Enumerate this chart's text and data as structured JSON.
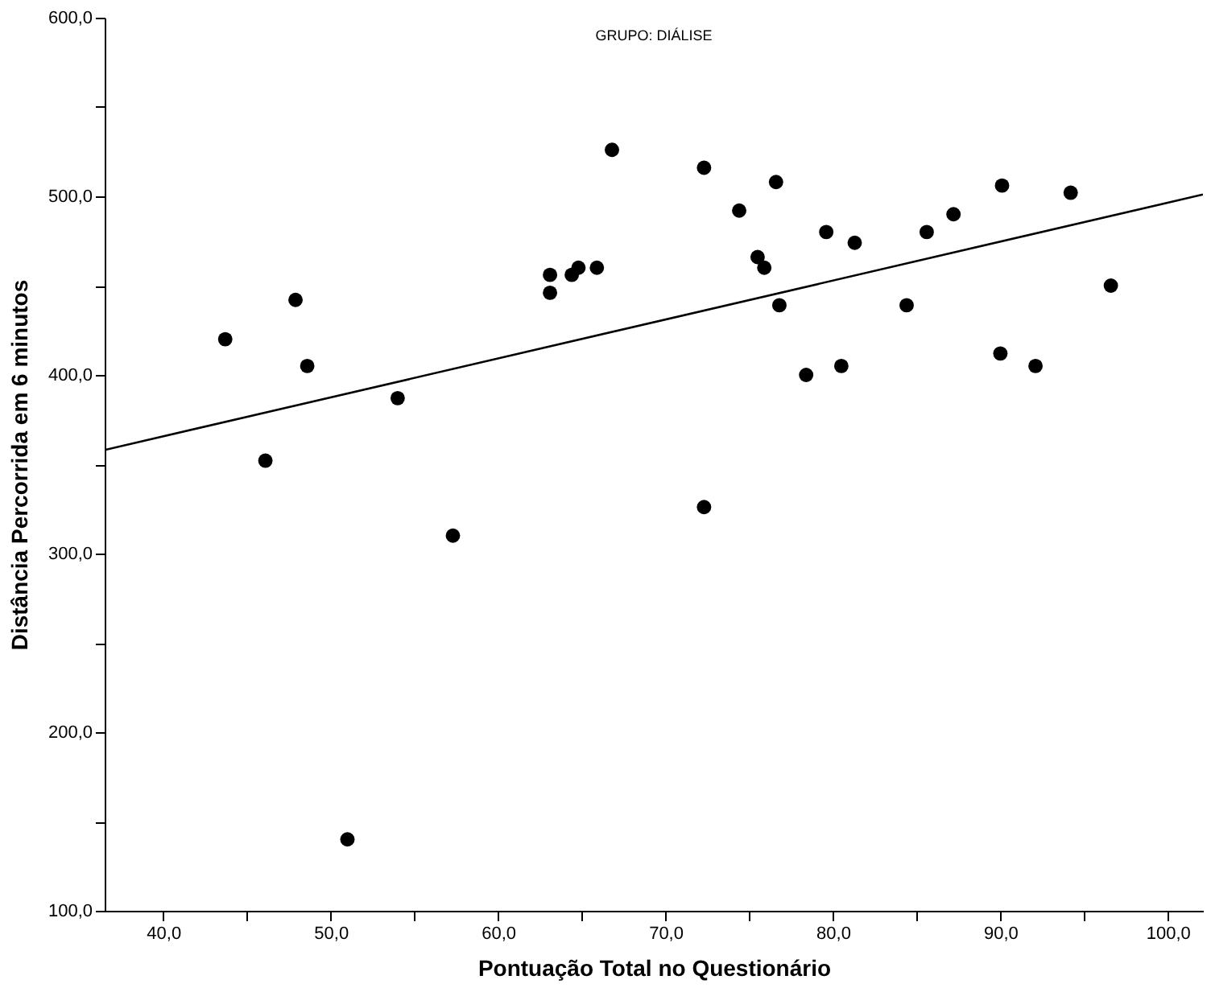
{
  "chart_data": {
    "type": "scatter",
    "title": "GRUPO: DIÁLISE",
    "xlabel": "Pontuação Total no Questionário",
    "ylabel": "Distância Percorrida em 6 minutos",
    "marker": "circle",
    "grid": false,
    "xlim": [
      36.5,
      102.1
    ],
    "ylim": [
      100,
      600
    ],
    "xticks": [
      {
        "value": 40,
        "label": "40,0"
      },
      {
        "value": 45,
        "label": null
      },
      {
        "value": 50,
        "label": "50,0"
      },
      {
        "value": 55,
        "label": null
      },
      {
        "value": 60,
        "label": "60,0"
      },
      {
        "value": 65,
        "label": null
      },
      {
        "value": 70,
        "label": "70,0"
      },
      {
        "value": 75,
        "label": null
      },
      {
        "value": 80,
        "label": "80,0"
      },
      {
        "value": 85,
        "label": null
      },
      {
        "value": 90,
        "label": "90,0"
      },
      {
        "value": 95,
        "label": null
      },
      {
        "value": 100,
        "label": "100,0"
      }
    ],
    "yticks": [
      {
        "value": 100,
        "label": "100,0"
      },
      {
        "value": 150,
        "label": null
      },
      {
        "value": 200,
        "label": "200,0"
      },
      {
        "value": 250,
        "label": null
      },
      {
        "value": 300,
        "label": "300,0"
      },
      {
        "value": 350,
        "label": null
      },
      {
        "value": 400,
        "label": "400,0"
      },
      {
        "value": 450,
        "label": null
      },
      {
        "value": 500,
        "label": "500,0"
      },
      {
        "value": 550,
        "label": null
      },
      {
        "value": 600,
        "label": "600,0"
      }
    ],
    "series": [
      {
        "color": "#000000",
        "x": [
          43.7,
          46.1,
          47.9,
          48.6,
          51.0,
          54.0,
          57.3,
          63.1,
          63.1,
          64.4,
          64.8,
          65.9,
          66.8,
          72.3,
          72.3,
          74.4,
          75.5,
          75.9,
          76.6,
          76.8,
          78.4,
          79.6,
          80.5,
          81.3,
          84.4,
          85.6,
          87.2,
          90.1,
          90.0,
          92.1,
          94.2,
          96.6
        ],
        "values": [
          420,
          352,
          442,
          405,
          140,
          387,
          310,
          456,
          446,
          456,
          460,
          460,
          526,
          516,
          326,
          492,
          466,
          460,
          508,
          439,
          400,
          480,
          405,
          474,
          439,
          480,
          490,
          506,
          412,
          405,
          502,
          450
        ]
      },
      {
        "type": "line",
        "color": "#000000",
        "marker": "none",
        "x": [
          36.5,
          102.1
        ],
        "values": [
          358,
          501
        ]
      }
    ]
  }
}
